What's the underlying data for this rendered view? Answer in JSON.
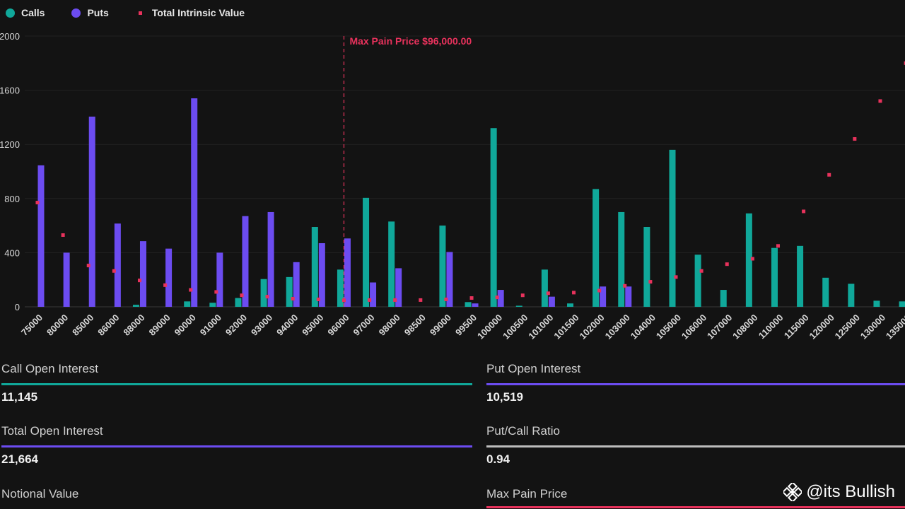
{
  "legend": {
    "calls": "Calls",
    "puts": "Puts",
    "intrinsic": "Total Intrinsic Value"
  },
  "colors": {
    "calls": "#10a89a",
    "puts": "#6c4cf1",
    "intrinsic": "#e8325c",
    "background": "#131313",
    "ratio": "#bdbdbd"
  },
  "chart_data": {
    "type": "bar",
    "categories": [
      "75000",
      "80000",
      "85000",
      "86000",
      "88000",
      "89000",
      "90000",
      "91000",
      "92000",
      "93000",
      "94000",
      "95000",
      "96000",
      "97000",
      "98000",
      "98500",
      "99000",
      "99500",
      "100000",
      "100500",
      "101000",
      "101500",
      "102000",
      "103000",
      "104000",
      "105000",
      "106000",
      "107000",
      "108000",
      "110000",
      "115000",
      "120000",
      "125000",
      "130000",
      "135000"
    ],
    "series": [
      {
        "name": "Calls",
        "kind": "bar",
        "values": [
          0,
          0,
          0,
          0,
          15,
          0,
          40,
          30,
          65,
          205,
          220,
          590,
          275,
          805,
          630,
          0,
          600,
          35,
          1320,
          8,
          275,
          25,
          870,
          700,
          590,
          1160,
          385,
          125,
          690,
          435,
          450,
          215,
          170,
          45,
          40
        ]
      },
      {
        "name": "Puts",
        "kind": "bar",
        "values": [
          1045,
          400,
          1405,
          615,
          485,
          430,
          1540,
          400,
          670,
          700,
          330,
          470,
          505,
          180,
          285,
          0,
          405,
          25,
          125,
          0,
          75,
          0,
          150,
          150,
          0,
          0,
          0,
          0,
          0,
          0,
          0,
          0,
          0,
          0,
          0
        ]
      },
      {
        "name": "Total Intrinsic Value",
        "kind": "scatter",
        "values": [
          770,
          530,
          305,
          265,
          195,
          160,
          125,
          110,
          85,
          75,
          60,
          55,
          48,
          50,
          50,
          50,
          55,
          65,
          70,
          85,
          100,
          105,
          120,
          155,
          185,
          220,
          265,
          315,
          355,
          450,
          705,
          975,
          1240,
          1520,
          1800
        ]
      }
    ],
    "ylim": [
      0,
      2000
    ],
    "yticks": [
      "0",
      "400",
      "800",
      "1200",
      "1600",
      "2000"
    ],
    "grid": true,
    "annotation": {
      "label": "Max Pain Price $96,000.00",
      "category": "96000"
    }
  },
  "stats": [
    {
      "label": "Call Open Interest",
      "value": "11,145",
      "color": "#10a89a"
    },
    {
      "label": "Put Open Interest",
      "value": "10,519",
      "color": "#6c4cf1"
    },
    {
      "label": "Total Open Interest",
      "value": "21,664",
      "color": "#6c4cf1"
    },
    {
      "label": "Put/Call Ratio",
      "value": "0.94",
      "color": "#bdbdbd"
    },
    {
      "label": "Notional Value",
      "value": "",
      "color": "#10a89a"
    },
    {
      "label": "Max Pain Price",
      "value": "",
      "color": "#e8325c"
    }
  ],
  "watermark": "@its Bullish"
}
